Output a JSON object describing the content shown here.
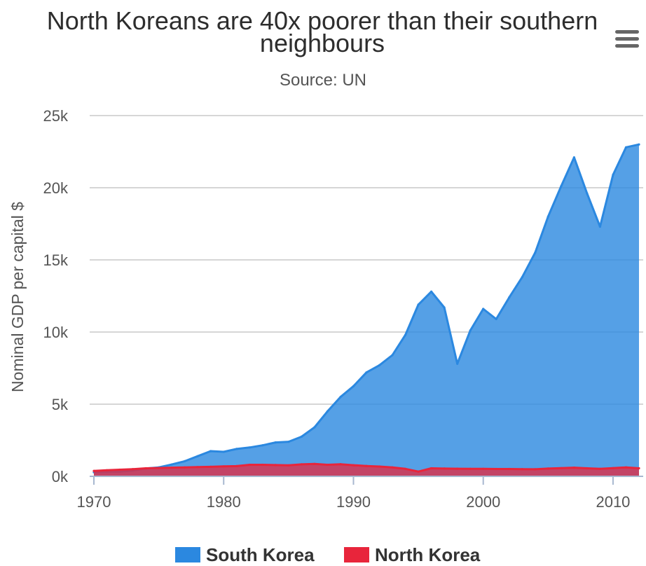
{
  "chart_data": {
    "type": "area",
    "title": "North Koreans are 40x poorer than their southern neighbours",
    "subtitle": "Source: UN",
    "xlabel": "",
    "ylabel": "Nominal GDP per capital $",
    "xlim": [
      1970,
      2012
    ],
    "ylim": [
      0,
      25000
    ],
    "x_ticks": [
      1970,
      1980,
      1990,
      2000,
      2010
    ],
    "y_ticks": [
      {
        "value": 0,
        "label": "0k"
      },
      {
        "value": 5000,
        "label": "5k"
      },
      {
        "value": 10000,
        "label": "10k"
      },
      {
        "value": 15000,
        "label": "15k"
      },
      {
        "value": 20000,
        "label": "20k"
      },
      {
        "value": 25000,
        "label": "25k"
      }
    ],
    "grid": true,
    "legend_position": "bottom",
    "x": [
      1970,
      1971,
      1972,
      1973,
      1974,
      1975,
      1976,
      1977,
      1978,
      1979,
      1980,
      1981,
      1982,
      1983,
      1984,
      1985,
      1986,
      1987,
      1988,
      1989,
      1990,
      1991,
      1992,
      1993,
      1994,
      1995,
      1996,
      1997,
      1998,
      1999,
      2000,
      2001,
      2002,
      2003,
      2004,
      2005,
      2006,
      2007,
      2008,
      2009,
      2010,
      2011,
      2012
    ],
    "series": [
      {
        "name": "South Korea",
        "color": "#2b88e0",
        "values": [
          280,
          300,
          320,
          400,
          550,
          620,
          820,
          1050,
          1400,
          1750,
          1700,
          1900,
          2000,
          2150,
          2350,
          2400,
          2750,
          3400,
          4500,
          5500,
          6250,
          7200,
          7700,
          8400,
          9800,
          11900,
          12800,
          11700,
          7800,
          10100,
          11600,
          10900,
          12400,
          13800,
          15500,
          18000,
          20100,
          22100,
          19600,
          17300,
          20900,
          22800,
          23000
        ]
      },
      {
        "name": "North Korea",
        "color": "#e8253b",
        "values": [
          380,
          420,
          460,
          500,
          560,
          580,
          600,
          620,
          640,
          660,
          690,
          710,
          800,
          800,
          780,
          760,
          830,
          860,
          800,
          840,
          770,
          720,
          680,
          620,
          520,
          330,
          560,
          540,
          530,
          520,
          520,
          510,
          510,
          500,
          490,
          540,
          570,
          600,
          560,
          520,
          570,
          620,
          560
        ]
      }
    ]
  },
  "ui": {
    "menu_icon": "hamburger-menu-icon"
  }
}
